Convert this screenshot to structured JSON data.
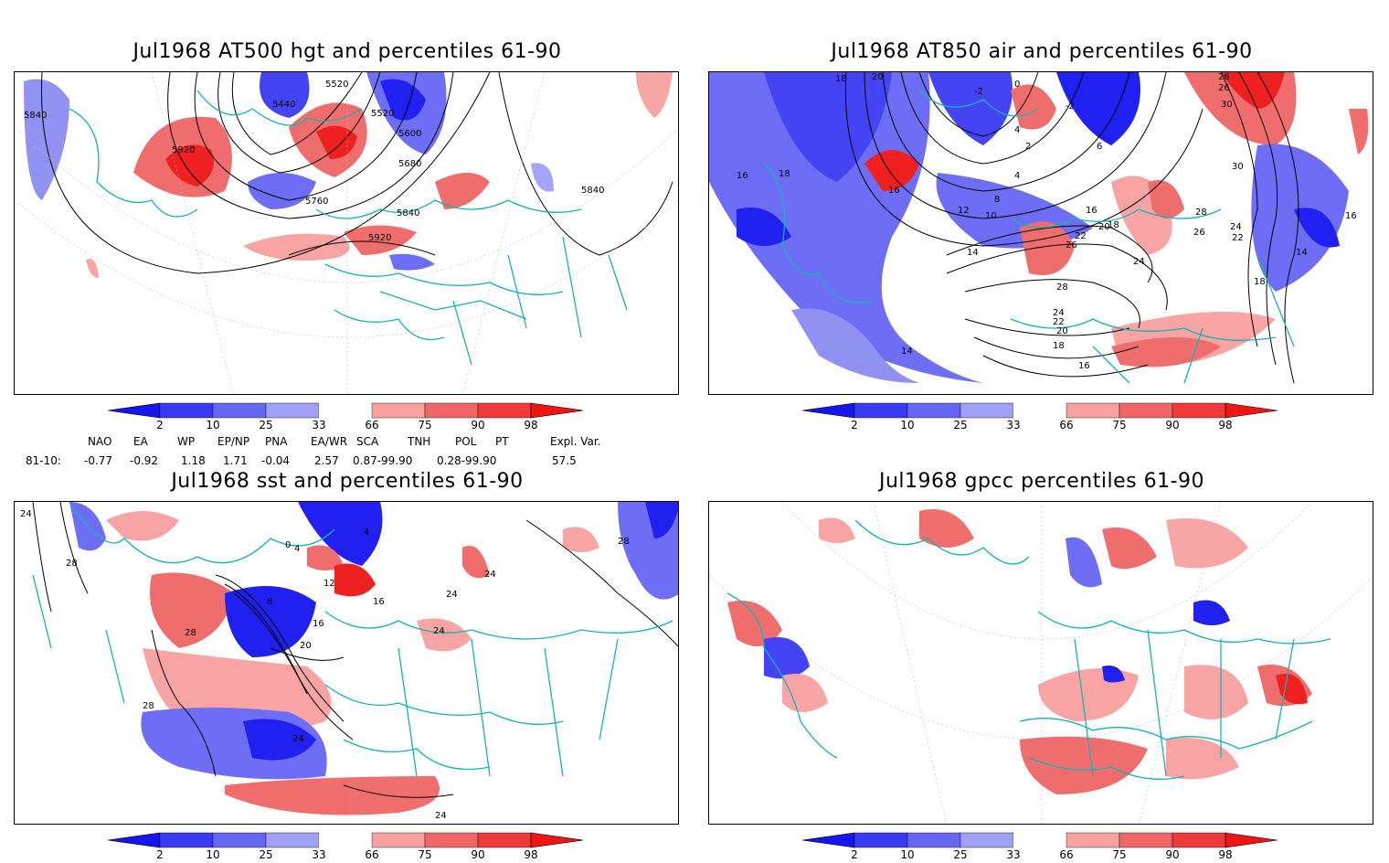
{
  "panels": [
    {
      "title": "Jul1968 AT500 hgt and percentiles 61-90",
      "contour_labels": [
        "5440",
        "5520",
        "5520",
        "5600",
        "5680",
        "5760",
        "5840",
        "5920",
        "5920",
        "5840",
        "5840"
      ]
    },
    {
      "title": "Jul1968 AT850 air and percentiles 61-90",
      "contour_labels": [
        "18",
        "20",
        "-2",
        "0",
        "-2",
        "26",
        "26",
        "30",
        "30",
        "16",
        "18",
        "16",
        "4",
        "2",
        "6",
        "4",
        "8",
        "10",
        "12",
        "14",
        "16",
        "18",
        "20",
        "22",
        "26",
        "26",
        "24",
        "22",
        "24",
        "28",
        "28",
        "24",
        "22",
        "20",
        "18",
        "16",
        "14",
        "18",
        "16",
        "14"
      ]
    },
    {
      "title": "Jul1968 sst and percentiles 61-90",
      "contour_labels": [
        "24",
        "28",
        "0",
        "4",
        "8",
        "12",
        "16",
        "20",
        "24",
        "28",
        "28",
        "24",
        "4",
        "16",
        "24",
        "24",
        "28",
        "24"
      ]
    },
    {
      "title": "Jul1968 gpcc percentiles 61-90",
      "contour_labels": []
    }
  ],
  "colorbar": {
    "ticks": [
      "2",
      "10",
      "25",
      "33",
      "66",
      "75",
      "90",
      "98"
    ],
    "colors": [
      "#1515f0",
      "#3a3af5",
      "#6666f5",
      "#a0a0f8",
      "#ffffff",
      "#f8a0a0",
      "#f06666",
      "#f03a3a",
      "#ee1515"
    ]
  },
  "indices": {
    "names": [
      "NAO",
      "EA",
      "WP",
      "EP/NP",
      "PNA",
      "EA/WR",
      "SCA",
      "TNH",
      "POL",
      "PT",
      "Expl. Var."
    ],
    "row_label": "81-10:",
    "values": [
      "-0.77",
      "-0.92",
      "1.18",
      "1.71",
      "-0.04",
      "2.57",
      "0.87-99.90",
      "0.28-99.90",
      "57.5"
    ]
  }
}
